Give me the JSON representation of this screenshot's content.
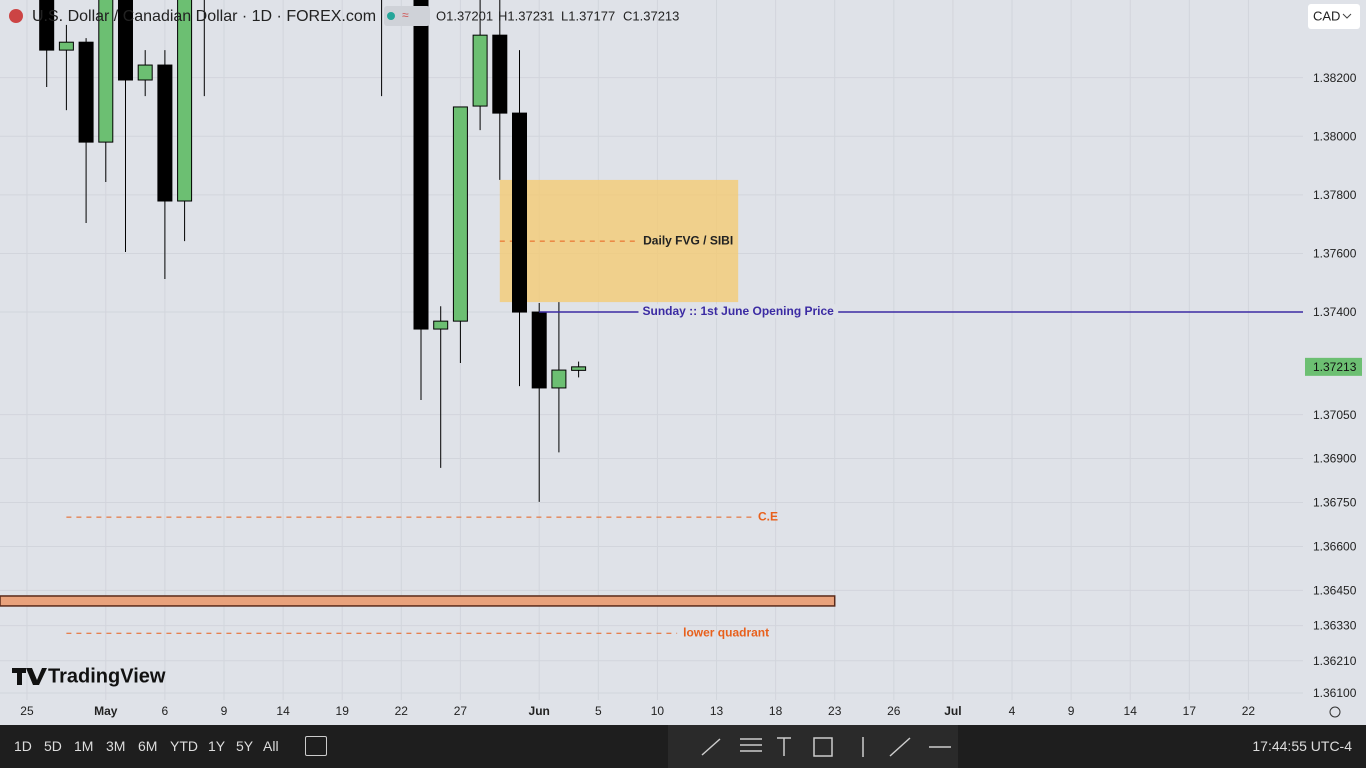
{
  "header": {
    "symbol": "U.S. Dollar / Canadian Dollar · 1D · FOREX.com",
    "ohlc": [
      "O1.37201",
      "H1.37231",
      "L1.37177",
      "C1.37213"
    ],
    "currency": "CAD"
  },
  "chart_data": {
    "type": "candlestick",
    "x": [
      1,
      2,
      3,
      4,
      5,
      6,
      7,
      8,
      9,
      18,
      20,
      21,
      22,
      23,
      24,
      25,
      26,
      27,
      28
    ],
    "open": [
      1.386,
      1.38294,
      1.38321,
      1.3798,
      1.386,
      1.38192,
      1.38243,
      1.37779,
      1.385,
      1.387,
      1.387,
      1.37342,
      1.37369,
      1.38103,
      1.38345,
      1.38079,
      1.374,
      1.37141,
      1.37201
    ],
    "high": [
      1.387,
      1.3838,
      1.38335,
      1.387,
      1.387,
      1.38294,
      1.38294,
      1.387,
      1.387,
      1.388,
      1.388,
      1.3742,
      1.381,
      1.3858,
      1.3855,
      1.38294,
      1.37431,
      1.37434,
      1.37231
    ],
    "low": [
      1.38168,
      1.38089,
      1.37704,
      1.37844,
      1.37605,
      1.38137,
      1.37513,
      1.37642,
      1.38137,
      1.38137,
      1.371,
      1.36868,
      1.37226,
      1.38021,
      1.37851,
      1.37147,
      1.36752,
      1.36921,
      1.37177
    ],
    "close": [
      1.38294,
      1.38321,
      1.3798,
      1.386,
      1.38192,
      1.38243,
      1.37779,
      1.386,
      1.3862,
      1.386,
      1.37342,
      1.37369,
      1.381,
      1.38345,
      1.38079,
      1.374,
      1.37141,
      1.37202,
      1.37213
    ],
    "up_color": "#6cbf72",
    "down_color": "#000000",
    "xlim": [
      -1.37,
      64.77
    ],
    "ylim": [
      1.36076,
      1.38465
    ],
    "xticks": [
      {
        "value": 0,
        "label": "25"
      },
      {
        "value": 4,
        "label": "May"
      },
      {
        "value": 7,
        "label": "6"
      },
      {
        "value": 10,
        "label": "9"
      },
      {
        "value": 13,
        "label": "14"
      },
      {
        "value": 16,
        "label": "19"
      },
      {
        "value": 19,
        "label": "22"
      },
      {
        "value": 22,
        "label": "27"
      },
      {
        "value": 26,
        "label": "Jun"
      },
      {
        "value": 29,
        "label": "5"
      },
      {
        "value": 32,
        "label": "10"
      },
      {
        "value": 35,
        "label": "13"
      },
      {
        "value": 38,
        "label": "18"
      },
      {
        "value": 41,
        "label": "23"
      },
      {
        "value": 44,
        "label": "26"
      },
      {
        "value": 47,
        "label": "Jul"
      },
      {
        "value": 50,
        "label": "4"
      },
      {
        "value": 53,
        "label": "9"
      },
      {
        "value": 56,
        "label": "14"
      },
      {
        "value": 59,
        "label": "17"
      },
      {
        "value": 62,
        "label": "22"
      }
    ],
    "yticks": [
      {
        "value": 1.361,
        "label": "1.36100"
      },
      {
        "value": 1.3621,
        "label": "1.36210"
      },
      {
        "value": 1.3633,
        "label": "1.36330"
      },
      {
        "value": 1.3645,
        "label": "1.36450"
      },
      {
        "value": 1.366,
        "label": "1.36600"
      },
      {
        "value": 1.3675,
        "label": "1.36750"
      },
      {
        "value": 1.369,
        "label": "1.36900"
      },
      {
        "value": 1.3705,
        "label": "1.37050"
      },
      {
        "value": 1.374,
        "label": "1.37400"
      },
      {
        "value": 1.376,
        "label": "1.37600"
      },
      {
        "value": 1.378,
        "label": "1.37800"
      },
      {
        "value": 1.38,
        "label": "1.38000"
      },
      {
        "value": 1.382,
        "label": "1.38200"
      }
    ],
    "grid": true,
    "last_price": 1.37213,
    "last_price_color": "#6cbf72",
    "zones": [
      {
        "name": "Daily FVG / SIBI",
        "low": 1.37434,
        "high": 1.37851,
        "mid": 1.37642,
        "from": 24,
        "to": 36.1,
        "color": "#f5c96e"
      },
      {
        "low": 1.36397,
        "high": 1.36431,
        "from": -1.37,
        "to": 41,
        "color": "#e9a27c"
      }
    ],
    "lines": [
      {
        "label": "Sunday :: 1st June Opening Price",
        "value": 1.374,
        "from": 26,
        "to": 64.77,
        "color": "#3b2ba3",
        "style": "solid"
      },
      {
        "label": "C.E",
        "value": 1.367,
        "from": 2,
        "to": 36.8,
        "color": "#e8601c",
        "style": "dashed"
      },
      {
        "label": "lower quadrant",
        "value": 1.36304,
        "from": 2,
        "to": 33,
        "color": "#e8601c",
        "style": "dashed"
      }
    ]
  },
  "toolbar": {
    "ranges": [
      "1D",
      "5D",
      "1M",
      "3M",
      "6M",
      "YTD",
      "1Y",
      "5Y",
      "All"
    ],
    "clock": "17:44:55 UTC-4"
  },
  "logo": "TradingView"
}
